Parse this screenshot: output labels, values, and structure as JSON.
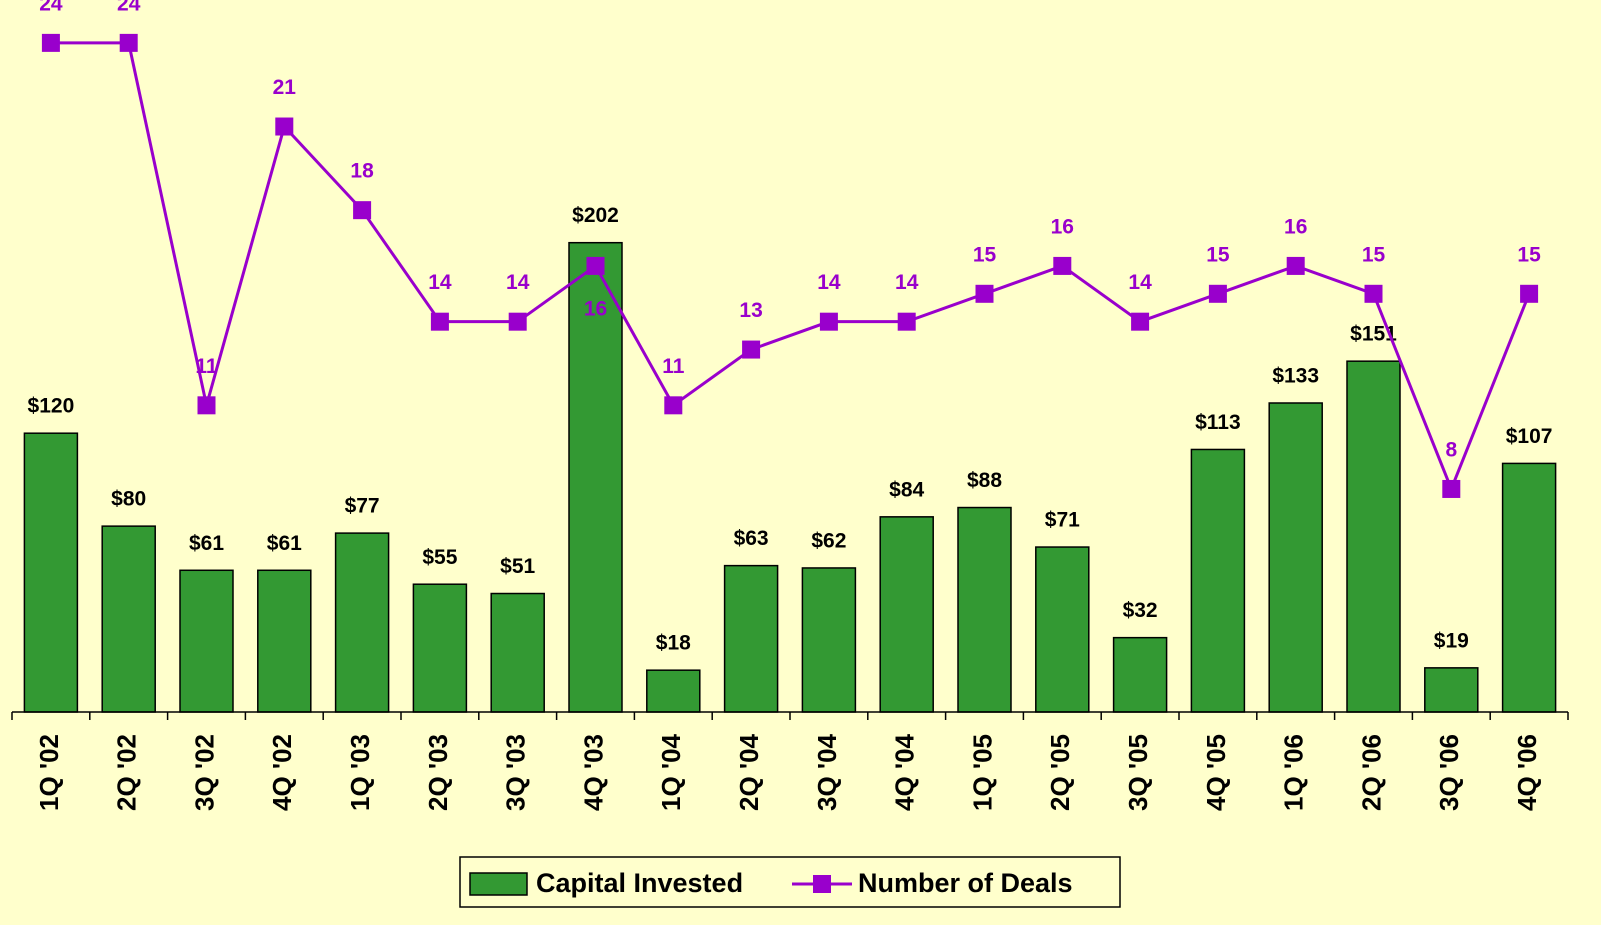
{
  "chart_data": {
    "type": "bar-line",
    "categories": [
      "1Q '02",
      "2Q '02",
      "3Q '02",
      "4Q '02",
      "1Q '03",
      "2Q '03",
      "3Q '03",
      "4Q '03",
      "1Q '04",
      "2Q '04",
      "3Q '04",
      "4Q '04",
      "1Q '05",
      "2Q '05",
      "3Q '05",
      "4Q '05",
      "1Q '06",
      "2Q '06",
      "3Q '06",
      "4Q '06"
    ],
    "series": [
      {
        "name": "Capital Invested",
        "type": "bar",
        "color": "#339933",
        "values": [
          120,
          80,
          61,
          61,
          77,
          55,
          51,
          202,
          18,
          63,
          62,
          84,
          88,
          71,
          32,
          113,
          133,
          151,
          19,
          107
        ],
        "value_labels": [
          "$120",
          "$80",
          "$61",
          "$61",
          "$77",
          "$55",
          "$51",
          "$202",
          "$18",
          "$63",
          "$62",
          "$84",
          "$88",
          "$71",
          "$32",
          "$113",
          "$133",
          "$151",
          "$19",
          "$107"
        ]
      },
      {
        "name": "Number of Deals",
        "type": "line",
        "axis": "y2",
        "color": "#9900cc",
        "values": [
          24,
          24,
          11,
          21,
          18,
          14,
          14,
          16,
          11,
          13,
          14,
          14,
          15,
          16,
          14,
          15,
          16,
          15,
          8,
          15
        ]
      }
    ],
    "ylim": [
      0,
      300
    ],
    "y2lim": [
      0,
      25
    ],
    "legend": "bottom"
  }
}
